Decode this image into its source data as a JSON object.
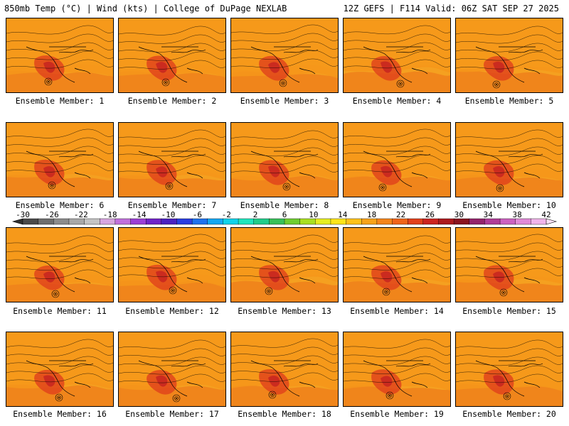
{
  "header": {
    "left": "850mb Temp (°C) | Wind (kts) | College of DuPage NEXLAB",
    "right": "12Z GEFS | F114 Valid: 06Z SAT SEP 27 2025"
  },
  "members": [
    {
      "label": "Ensemble Member: 1"
    },
    {
      "label": "Ensemble Member: 2"
    },
    {
      "label": "Ensemble Member: 3"
    },
    {
      "label": "Ensemble Member: 4"
    },
    {
      "label": "Ensemble Member: 5"
    },
    {
      "label": "Ensemble Member: 6"
    },
    {
      "label": "Ensemble Member: 7"
    },
    {
      "label": "Ensemble Member: 8"
    },
    {
      "label": "Ensemble Member: 9"
    },
    {
      "label": "Ensemble Member: 10"
    },
    {
      "label": "Ensemble Member: 11"
    },
    {
      "label": "Ensemble Member: 12"
    },
    {
      "label": "Ensemble Member: 13"
    },
    {
      "label": "Ensemble Member: 14"
    },
    {
      "label": "Ensemble Member: 15"
    },
    {
      "label": "Ensemble Member: 16"
    },
    {
      "label": "Ensemble Member: 17"
    },
    {
      "label": "Ensemble Member: 18"
    },
    {
      "label": "Ensemble Member: 19"
    },
    {
      "label": "Ensemble Member: 20"
    }
  ],
  "colorbar": {
    "ticks": [
      "-30",
      "-26",
      "-22",
      "-18",
      "-14",
      "-10",
      "-6",
      "-2",
      "2",
      "6",
      "10",
      "14",
      "18",
      "22",
      "26",
      "30",
      "34",
      "38",
      "42"
    ],
    "colors": [
      "#4a4a4a",
      "#6e6e6e",
      "#8c8c8c",
      "#a8a8a8",
      "#c4c4c4",
      "#d7a6e0",
      "#c070dd",
      "#9b3fd6",
      "#7024c8",
      "#4b22c0",
      "#2a3ee0",
      "#1f72ee",
      "#15a7f2",
      "#10d2ea",
      "#1fe6bd",
      "#20cc8a",
      "#38c05a",
      "#6fce31",
      "#a9e021",
      "#e6ee20",
      "#fde51a",
      "#ffc21a",
      "#f7a31a",
      "#f5851a",
      "#f0641a",
      "#e2401c",
      "#cc2420",
      "#ac1a1e",
      "#8a1420",
      "#94246c",
      "#b03c98",
      "#cc62c0",
      "#e18ad8",
      "#f0b4ea"
    ]
  }
}
